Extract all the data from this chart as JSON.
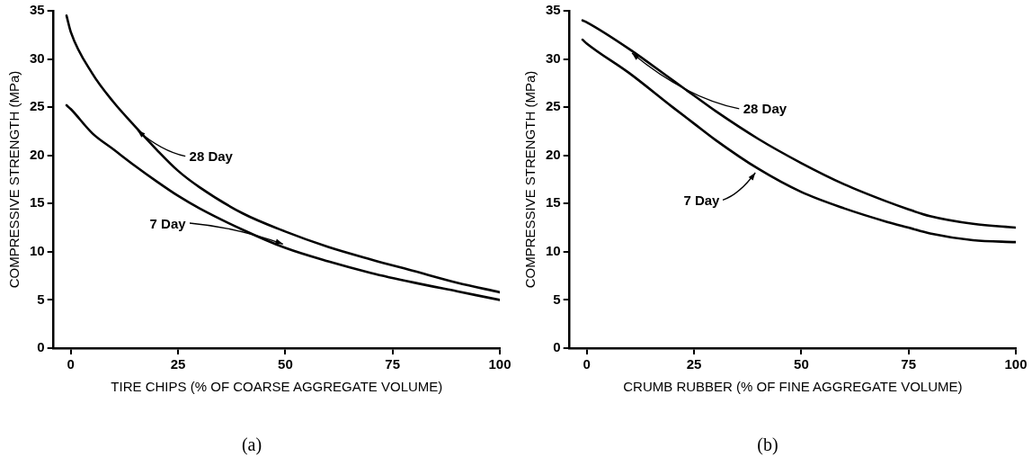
{
  "chart_data": [
    {
      "type": "line",
      "title": "(a)",
      "xlabel": "TIRE CHIPS (% OF COARSE AGGREGATE VOLUME)",
      "ylabel": "COMPRESSIVE STRENGTH (MPa)",
      "x": [
        -1,
        0,
        5,
        10,
        15,
        20,
        25,
        30,
        40,
        50,
        60,
        70,
        80,
        90,
        100
      ],
      "xlim": [
        -4,
        100
      ],
      "xticks": [
        0,
        25,
        50,
        75,
        100
      ],
      "ylim": [
        0,
        35
      ],
      "yticks": [
        0,
        5,
        10,
        15,
        20,
        25,
        30,
        35
      ],
      "grid": false,
      "legend": false,
      "marker": "none",
      "line_style": "solid",
      "series": [
        {
          "name": "28 Day",
          "color": "#000000",
          "values": [
            34.5,
            32.8,
            28.5,
            25.5,
            23.0,
            20.6,
            18.4,
            16.7,
            14.0,
            12.1,
            10.5,
            9.2,
            8.0,
            6.8,
            5.8
          ]
        },
        {
          "name": "7 Day",
          "color": "#000000",
          "values": [
            25.2,
            24.8,
            22.3,
            20.6,
            18.9,
            17.3,
            15.8,
            14.5,
            12.3,
            10.4,
            9.0,
            7.8,
            6.8,
            5.9,
            5.0
          ]
        }
      ]
    },
    {
      "type": "line",
      "title": "(b)",
      "xlabel": "CRUMB RUBBER (% OF FINE AGGREGATE VOLUME)",
      "ylabel": "COMPRESSIVE STRENGTH (MPa)",
      "x": [
        -1,
        0,
        10,
        20,
        25,
        30,
        40,
        50,
        60,
        70,
        75,
        80,
        90,
        100
      ],
      "xlim": [
        -4,
        100
      ],
      "xticks": [
        0,
        25,
        50,
        75,
        100
      ],
      "ylim": [
        0,
        35
      ],
      "yticks": [
        0,
        5,
        10,
        15,
        20,
        25,
        30,
        35
      ],
      "grid": false,
      "legend": false,
      "marker": "none",
      "line_style": "solid",
      "series": [
        {
          "name": "28 Day",
          "color": "#000000",
          "values": [
            34.0,
            33.8,
            31.0,
            27.8,
            26.2,
            24.6,
            21.7,
            19.2,
            17.0,
            15.2,
            14.4,
            13.7,
            12.9,
            12.5
          ]
        },
        {
          "name": "7 Day",
          "color": "#000000",
          "values": [
            32.0,
            31.6,
            28.5,
            25.0,
            23.3,
            21.6,
            18.6,
            16.2,
            14.5,
            13.1,
            12.5,
            11.9,
            11.2,
            11.0
          ]
        }
      ]
    }
  ]
}
